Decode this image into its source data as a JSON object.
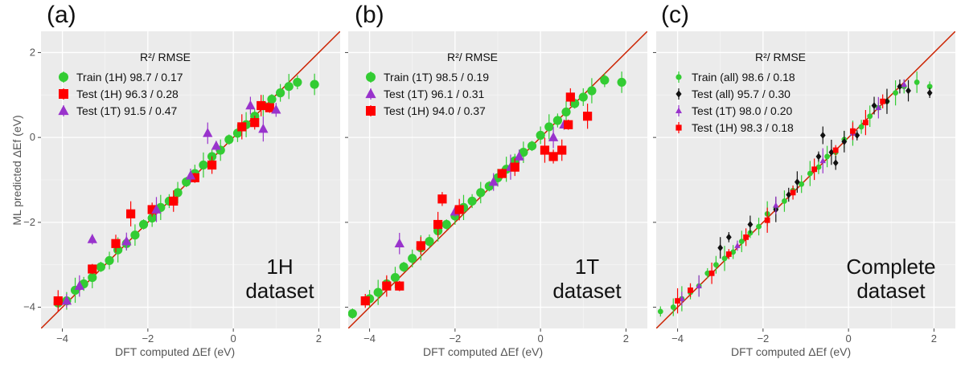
{
  "chart_data": [
    {
      "type": "scatter",
      "panel_label": "(a)",
      "xlabel": "DFT computed ΔEf (eV)",
      "ylabel": "ML predicted ΔEf (eV)",
      "xlim": [
        -4.5,
        2.5
      ],
      "ylim": [
        -4.5,
        2.5
      ],
      "xticks": [
        -4,
        -2,
        0,
        2
      ],
      "yticks": [
        -4,
        -2,
        0,
        2
      ],
      "x_tick_labels": [
        "−4",
        "−2",
        "0",
        "2"
      ],
      "y_tick_labels": [
        "−4",
        "−2",
        "0",
        "2"
      ],
      "grid": true,
      "legend_title": "R²/ RMSE",
      "legend_placement": "top-left",
      "annotation": [
        "1H",
        "dataset"
      ],
      "series": [
        {
          "name": "Train (1H) 98.7 / 0.17",
          "marker": "circle",
          "color": "#33cc33",
          "x": [
            -4.1,
            -3.9,
            -3.7,
            -3.5,
            -3.3,
            -3.1,
            -2.9,
            -2.7,
            -2.5,
            -2.3,
            -2.1,
            -1.9,
            -1.7,
            -1.5,
            -1.3,
            -1.1,
            -0.9,
            -0.7,
            -0.5,
            -0.3,
            -0.1,
            0.1,
            0.3,
            0.5,
            0.7,
            0.9,
            1.1,
            1.3,
            1.5,
            1.9
          ],
          "y": [
            -3.9,
            -3.85,
            -3.6,
            -3.45,
            -3.3,
            -3.05,
            -2.9,
            -2.65,
            -2.5,
            -2.3,
            -2.05,
            -1.9,
            -1.65,
            -1.5,
            -1.3,
            -1.05,
            -0.85,
            -0.65,
            -0.45,
            -0.3,
            -0.05,
            0.1,
            0.3,
            0.5,
            0.75,
            0.9,
            1.05,
            1.2,
            1.3,
            1.25
          ]
        },
        {
          "name": "Test (1H) 96.3 / 0.28",
          "marker": "square",
          "color": "#ff0000",
          "x": [
            -4.1,
            -3.3,
            -2.75,
            -2.4,
            -1.9,
            -1.4,
            -0.9,
            -0.5,
            0.2,
            0.5,
            0.65,
            0.85
          ],
          "y": [
            -3.85,
            -3.1,
            -2.5,
            -1.8,
            -1.7,
            -1.5,
            -0.95,
            -0.65,
            0.25,
            0.35,
            0.75,
            0.7
          ]
        },
        {
          "name": "Test (1T) 91.5 / 0.47",
          "marker": "triangle",
          "color": "#9933cc",
          "x": [
            -3.9,
            -3.6,
            -3.3,
            -2.5,
            -1.8,
            -1.0,
            -0.6,
            -0.4,
            0.4,
            0.7,
            1.0
          ],
          "y": [
            -3.85,
            -3.5,
            -2.4,
            -2.45,
            -1.7,
            -0.9,
            0.1,
            -0.2,
            0.75,
            0.2,
            0.65
          ]
        }
      ]
    },
    {
      "type": "scatter",
      "panel_label": "(b)",
      "xlabel": "DFT computed ΔEf (eV)",
      "ylabel": "",
      "xlim": [
        -4.5,
        2.5
      ],
      "ylim": [
        -4.5,
        2.5
      ],
      "xticks": [
        -4,
        -2,
        0,
        2
      ],
      "yticks": [
        -4,
        -2,
        0,
        2
      ],
      "x_tick_labels": [
        "−4",
        "−2",
        "0",
        "2"
      ],
      "y_tick_labels": [],
      "grid": true,
      "legend_title": "R²/ RMSE",
      "legend_placement": "top-left",
      "annotation": [
        "1T",
        "dataset"
      ],
      "series": [
        {
          "name": "Train (1T) 98.5 / 0.19",
          "marker": "circle",
          "color": "#33cc33",
          "x": [
            -4.4,
            -4.0,
            -3.8,
            -3.6,
            -3.4,
            -3.2,
            -3.0,
            -2.8,
            -2.6,
            -2.4,
            -2.2,
            -2.0,
            -1.8,
            -1.6,
            -1.4,
            -1.2,
            -1.0,
            -0.8,
            -0.6,
            -0.4,
            -0.2,
            0.0,
            0.2,
            0.4,
            0.6,
            0.8,
            1.0,
            1.2,
            1.5,
            1.9
          ],
          "y": [
            -4.15,
            -3.8,
            -3.65,
            -3.45,
            -3.3,
            -3.05,
            -2.85,
            -2.6,
            -2.45,
            -2.2,
            -2.05,
            -1.85,
            -1.65,
            -1.5,
            -1.3,
            -1.15,
            -0.95,
            -0.75,
            -0.55,
            -0.35,
            -0.2,
            0.05,
            0.25,
            0.4,
            0.6,
            0.8,
            0.95,
            1.1,
            1.35,
            1.3
          ]
        },
        {
          "name": "Test (1T) 96.1 / 0.31",
          "marker": "triangle",
          "color": "#9933cc",
          "x": [
            -3.3,
            -2.0,
            -1.1,
            -0.7,
            -0.5,
            0.3,
            0.55
          ],
          "y": [
            -2.5,
            -1.75,
            -1.05,
            -0.7,
            -0.45,
            0.0,
            0.3
          ]
        },
        {
          "name": "Test (1H) 94.0 / 0.37",
          "marker": "square",
          "color": "#ff0000",
          "x": [
            -4.1,
            -3.6,
            -3.3,
            -2.8,
            -2.4,
            -2.3,
            -1.9,
            -0.9,
            -0.6,
            0.1,
            0.3,
            0.5,
            0.65,
            0.7,
            1.1
          ],
          "y": [
            -3.85,
            -3.5,
            -3.5,
            -2.55,
            -2.05,
            -1.45,
            -1.7,
            -0.85,
            -0.7,
            -0.3,
            -0.45,
            -0.3,
            0.3,
            0.95,
            0.5
          ]
        }
      ]
    },
    {
      "type": "scatter",
      "panel_label": "(c)",
      "xlabel": "DFT computed ΔEf (eV)",
      "ylabel": "",
      "xlim": [
        -4.5,
        2.5
      ],
      "ylim": [
        -4.5,
        2.5
      ],
      "xticks": [
        -4,
        -2,
        0,
        2
      ],
      "yticks": [
        -4,
        -2,
        0,
        2
      ],
      "x_tick_labels": [
        "−4",
        "−2",
        "0",
        "2"
      ],
      "y_tick_labels": [],
      "grid": true,
      "legend_title": "R²/ RMSE",
      "legend_placement": "top-left",
      "annotation": [
        "Complete",
        "dataset"
      ],
      "series": [
        {
          "name": "Train (all) 98.6 / 0.18",
          "marker": "circle",
          "color": "#33cc33",
          "x": [
            -4.4,
            -4.1,
            -3.9,
            -3.7,
            -3.5,
            -3.3,
            -3.1,
            -2.9,
            -2.7,
            -2.5,
            -2.3,
            -2.1,
            -1.9,
            -1.7,
            -1.5,
            -1.3,
            -1.1,
            -0.9,
            -0.7,
            -0.5,
            -0.3,
            -0.1,
            0.1,
            0.3,
            0.5,
            0.7,
            0.9,
            1.1,
            1.3,
            1.6,
            1.9
          ],
          "y": [
            -4.1,
            -4.0,
            -3.8,
            -3.65,
            -3.5,
            -3.2,
            -3.0,
            -2.85,
            -2.7,
            -2.45,
            -2.25,
            -2.1,
            -1.8,
            -1.65,
            -1.5,
            -1.25,
            -1.1,
            -0.85,
            -0.7,
            -0.45,
            -0.35,
            -0.05,
            0.1,
            0.25,
            0.5,
            0.7,
            0.85,
            1.05,
            1.2,
            1.3,
            1.2
          ]
        },
        {
          "name": "Test (all) 95.7 / 0.30",
          "marker": "diamond",
          "color": "#111111",
          "x": [
            -3.0,
            -2.8,
            -2.3,
            -1.7,
            -1.4,
            -1.2,
            -0.7,
            -0.6,
            -0.4,
            -0.3,
            -0.1,
            0.2,
            0.6,
            0.9,
            1.2,
            1.4,
            1.9
          ],
          "y": [
            -2.6,
            -2.35,
            -2.05,
            -1.7,
            -1.35,
            -1.05,
            -0.45,
            0.05,
            -0.35,
            -0.6,
            -0.1,
            0.05,
            0.75,
            0.85,
            1.2,
            1.1,
            1.05
          ]
        },
        {
          "name": "Test (1T) 98.0 / 0.20",
          "marker": "triangle",
          "color": "#9933cc",
          "x": [
            -3.9,
            -3.5,
            -2.6,
            -1.7,
            -0.6,
            0.1,
            0.7,
            1.3
          ],
          "y": [
            -3.8,
            -3.5,
            -2.55,
            -1.6,
            -0.55,
            0.1,
            0.7,
            1.25
          ]
        },
        {
          "name": "Test (1H) 98.3 / 0.18",
          "marker": "square",
          "color": "#ff0000",
          "x": [
            -4.0,
            -3.7,
            -3.2,
            -2.8,
            -2.4,
            -1.9,
            -1.3,
            -0.8,
            -0.3,
            0.1,
            0.4,
            0.8
          ],
          "y": [
            -3.85,
            -3.6,
            -3.2,
            -2.75,
            -2.35,
            -1.95,
            -1.3,
            -0.75,
            -0.3,
            0.15,
            0.35,
            0.85
          ]
        }
      ]
    }
  ]
}
